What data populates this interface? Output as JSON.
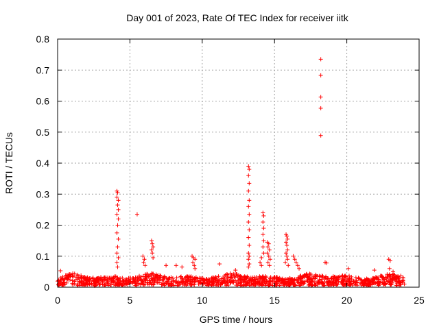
{
  "chart_data": {
    "type": "scatter",
    "title": "Day 001 of 2023, Rate Of TEC Index for receiver iitk",
    "xlabel": "GPS time / hours",
    "ylabel": "ROTI / TECUs",
    "xlim": [
      0,
      25
    ],
    "ylim": [
      0,
      0.8
    ],
    "xticks": [
      0,
      5,
      10,
      15,
      20,
      25
    ],
    "yticks": [
      0,
      0.1,
      0.2,
      0.3,
      0.4,
      0.5,
      0.6,
      0.7,
      0.8
    ],
    "xtick_labels": [
      "0",
      "5",
      "10",
      "15",
      "20",
      "25"
    ],
    "ytick_labels": [
      "0",
      "0.1",
      "0.2",
      "0.3",
      "0.4",
      "0.5",
      "0.6",
      "0.7",
      "0.8"
    ],
    "grid": true,
    "marker": "+",
    "color": "#ff0000",
    "baseline_band": {
      "x_range": [
        0,
        24
      ],
      "y_range": [
        0.005,
        0.045
      ],
      "note": "dense cluster of points along the bottom"
    },
    "series": [
      {
        "name": "ROTI",
        "points": [
          [
            0.1,
            0.012
          ],
          [
            0.2,
            0.053
          ],
          [
            0.4,
            0.015
          ],
          [
            4.1,
            0.31
          ],
          [
            4.15,
            0.305
          ],
          [
            4.1,
            0.29
          ],
          [
            4.2,
            0.28
          ],
          [
            4.15,
            0.265
          ],
          [
            4.2,
            0.25
          ],
          [
            4.1,
            0.235
          ],
          [
            4.2,
            0.22
          ],
          [
            4.15,
            0.2
          ],
          [
            4.1,
            0.175
          ],
          [
            4.2,
            0.155
          ],
          [
            4.15,
            0.13
          ],
          [
            4.1,
            0.11
          ],
          [
            4.2,
            0.095
          ],
          [
            4.1,
            0.08
          ],
          [
            4.15,
            0.065
          ],
          [
            5.5,
            0.235
          ],
          [
            5.9,
            0.1
          ],
          [
            6.0,
            0.09
          ],
          [
            5.95,
            0.08
          ],
          [
            6.05,
            0.07
          ],
          [
            6.5,
            0.15
          ],
          [
            6.55,
            0.14
          ],
          [
            6.6,
            0.13
          ],
          [
            6.5,
            0.12
          ],
          [
            6.55,
            0.11
          ],
          [
            6.6,
            0.095
          ],
          [
            7.5,
            0.07
          ],
          [
            8.2,
            0.07
          ],
          [
            8.6,
            0.065
          ],
          [
            9.3,
            0.1
          ],
          [
            9.4,
            0.095
          ],
          [
            9.5,
            0.09
          ],
          [
            9.35,
            0.08
          ],
          [
            9.45,
            0.07
          ],
          [
            9.5,
            0.06
          ],
          [
            11.2,
            0.075
          ],
          [
            12.3,
            0.055
          ],
          [
            13.2,
            0.39
          ],
          [
            13.25,
            0.38
          ],
          [
            13.2,
            0.36
          ],
          [
            13.25,
            0.335
          ],
          [
            13.2,
            0.31
          ],
          [
            13.25,
            0.28
          ],
          [
            13.2,
            0.26
          ],
          [
            13.25,
            0.235
          ],
          [
            13.2,
            0.21
          ],
          [
            13.25,
            0.185
          ],
          [
            13.2,
            0.16
          ],
          [
            13.25,
            0.135
          ],
          [
            13.2,
            0.11
          ],
          [
            13.25,
            0.1
          ],
          [
            13.2,
            0.09
          ],
          [
            13.25,
            0.075
          ],
          [
            13.2,
            0.065
          ],
          [
            14.2,
            0.24
          ],
          [
            14.25,
            0.23
          ],
          [
            14.2,
            0.21
          ],
          [
            14.25,
            0.19
          ],
          [
            14.2,
            0.17
          ],
          [
            14.25,
            0.15
          ],
          [
            14.2,
            0.13
          ],
          [
            14.25,
            0.11
          ],
          [
            14.1,
            0.095
          ],
          [
            14.0,
            0.08
          ],
          [
            14.1,
            0.07
          ],
          [
            14.5,
            0.145
          ],
          [
            14.6,
            0.14
          ],
          [
            14.55,
            0.13
          ],
          [
            14.65,
            0.12
          ],
          [
            14.5,
            0.11
          ],
          [
            14.6,
            0.1
          ],
          [
            14.7,
            0.09
          ],
          [
            14.55,
            0.08
          ],
          [
            14.65,
            0.07
          ],
          [
            15.8,
            0.17
          ],
          [
            15.85,
            0.165
          ],
          [
            15.9,
            0.155
          ],
          [
            15.8,
            0.145
          ],
          [
            15.85,
            0.135
          ],
          [
            15.9,
            0.12
          ],
          [
            15.8,
            0.11
          ],
          [
            15.85,
            0.1
          ],
          [
            15.9,
            0.09
          ],
          [
            15.75,
            0.08
          ],
          [
            15.95,
            0.07
          ],
          [
            16.3,
            0.1
          ],
          [
            16.4,
            0.09
          ],
          [
            16.5,
            0.08
          ],
          [
            16.6,
            0.07
          ],
          [
            16.7,
            0.06
          ],
          [
            18.2,
            0.735
          ],
          [
            18.2,
            0.683
          ],
          [
            18.2,
            0.613
          ],
          [
            18.2,
            0.577
          ],
          [
            18.2,
            0.489
          ],
          [
            18.5,
            0.08
          ],
          [
            18.6,
            0.078
          ],
          [
            20.1,
            0.06
          ],
          [
            21.9,
            0.055
          ],
          [
            22.9,
            0.09
          ],
          [
            23.0,
            0.085
          ],
          [
            22.95,
            0.06
          ],
          [
            23.2,
            0.05
          ]
        ]
      }
    ]
  }
}
